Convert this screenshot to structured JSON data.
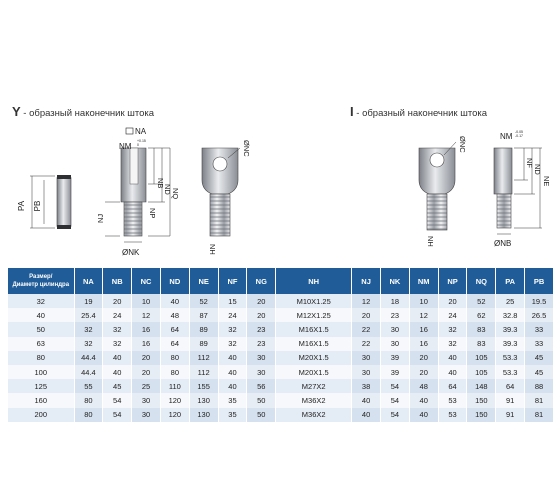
{
  "headings": {
    "y_letter": "Y",
    "y_text": " - образный наконечник штока",
    "i_letter": "I",
    "i_text": " - образный наконечник штока"
  },
  "drawing_labels": {
    "pa": "PA",
    "pb": "PB",
    "na": "NA",
    "nm": "NM",
    "nm_tol_y": "+0.15\n0",
    "nb": "NB",
    "nd": "ND",
    "nq": "NQ",
    "np": "NP",
    "nj": "NJ",
    "nk": "ØNK",
    "nc": "ØNC",
    "nh": "NH",
    "i_nm": "NM",
    "i_nm_tol": "-0.05\n-0.17",
    "i_nc": "ØNC",
    "i_nf": "NF",
    "i_nd": "ND",
    "i_ne": "NE",
    "i_nh": "NH",
    "i_nb": "ØNB"
  },
  "table": {
    "header_first_line1": "Размер/",
    "header_first_line2": "Диаметр цилиндра",
    "columns": [
      "NA",
      "NB",
      "NC",
      "ND",
      "NE",
      "NF",
      "NG",
      "NH",
      "NJ",
      "NK",
      "NM",
      "NP",
      "NQ",
      "PA",
      "PB"
    ],
    "rows": [
      [
        "32",
        "19",
        "20",
        "10",
        "40",
        "52",
        "15",
        "20",
        "M10X1.25",
        "12",
        "18",
        "10",
        "20",
        "52",
        "25",
        "19.5"
      ],
      [
        "40",
        "25.4",
        "24",
        "12",
        "48",
        "87",
        "24",
        "20",
        "M12X1.25",
        "20",
        "23",
        "12",
        "24",
        "62",
        "32.8",
        "26.5"
      ],
      [
        "50",
        "32",
        "32",
        "16",
        "64",
        "89",
        "32",
        "23",
        "M16X1.5",
        "22",
        "30",
        "16",
        "32",
        "83",
        "39.3",
        "33"
      ],
      [
        "63",
        "32",
        "32",
        "16",
        "64",
        "89",
        "32",
        "23",
        "M16X1.5",
        "22",
        "30",
        "16",
        "32",
        "83",
        "39.3",
        "33"
      ],
      [
        "80",
        "44.4",
        "40",
        "20",
        "80",
        "112",
        "40",
        "30",
        "M20X1.5",
        "30",
        "39",
        "20",
        "40",
        "105",
        "53.3",
        "45"
      ],
      [
        "100",
        "44.4",
        "40",
        "20",
        "80",
        "112",
        "40",
        "30",
        "M20X1.5",
        "30",
        "39",
        "20",
        "40",
        "105",
        "53.3",
        "45"
      ],
      [
        "125",
        "55",
        "45",
        "25",
        "110",
        "155",
        "40",
        "56",
        "M27X2",
        "38",
        "54",
        "48",
        "64",
        "148",
        "64",
        "88"
      ],
      [
        "160",
        "80",
        "54",
        "30",
        "120",
        "130",
        "35",
        "50",
        "M36X2",
        "40",
        "54",
        "40",
        "53",
        "150",
        "91",
        "81"
      ],
      [
        "200",
        "80",
        "54",
        "30",
        "120",
        "130",
        "35",
        "50",
        "M36X2",
        "40",
        "54",
        "40",
        "53",
        "150",
        "91",
        "81"
      ]
    ]
  }
}
